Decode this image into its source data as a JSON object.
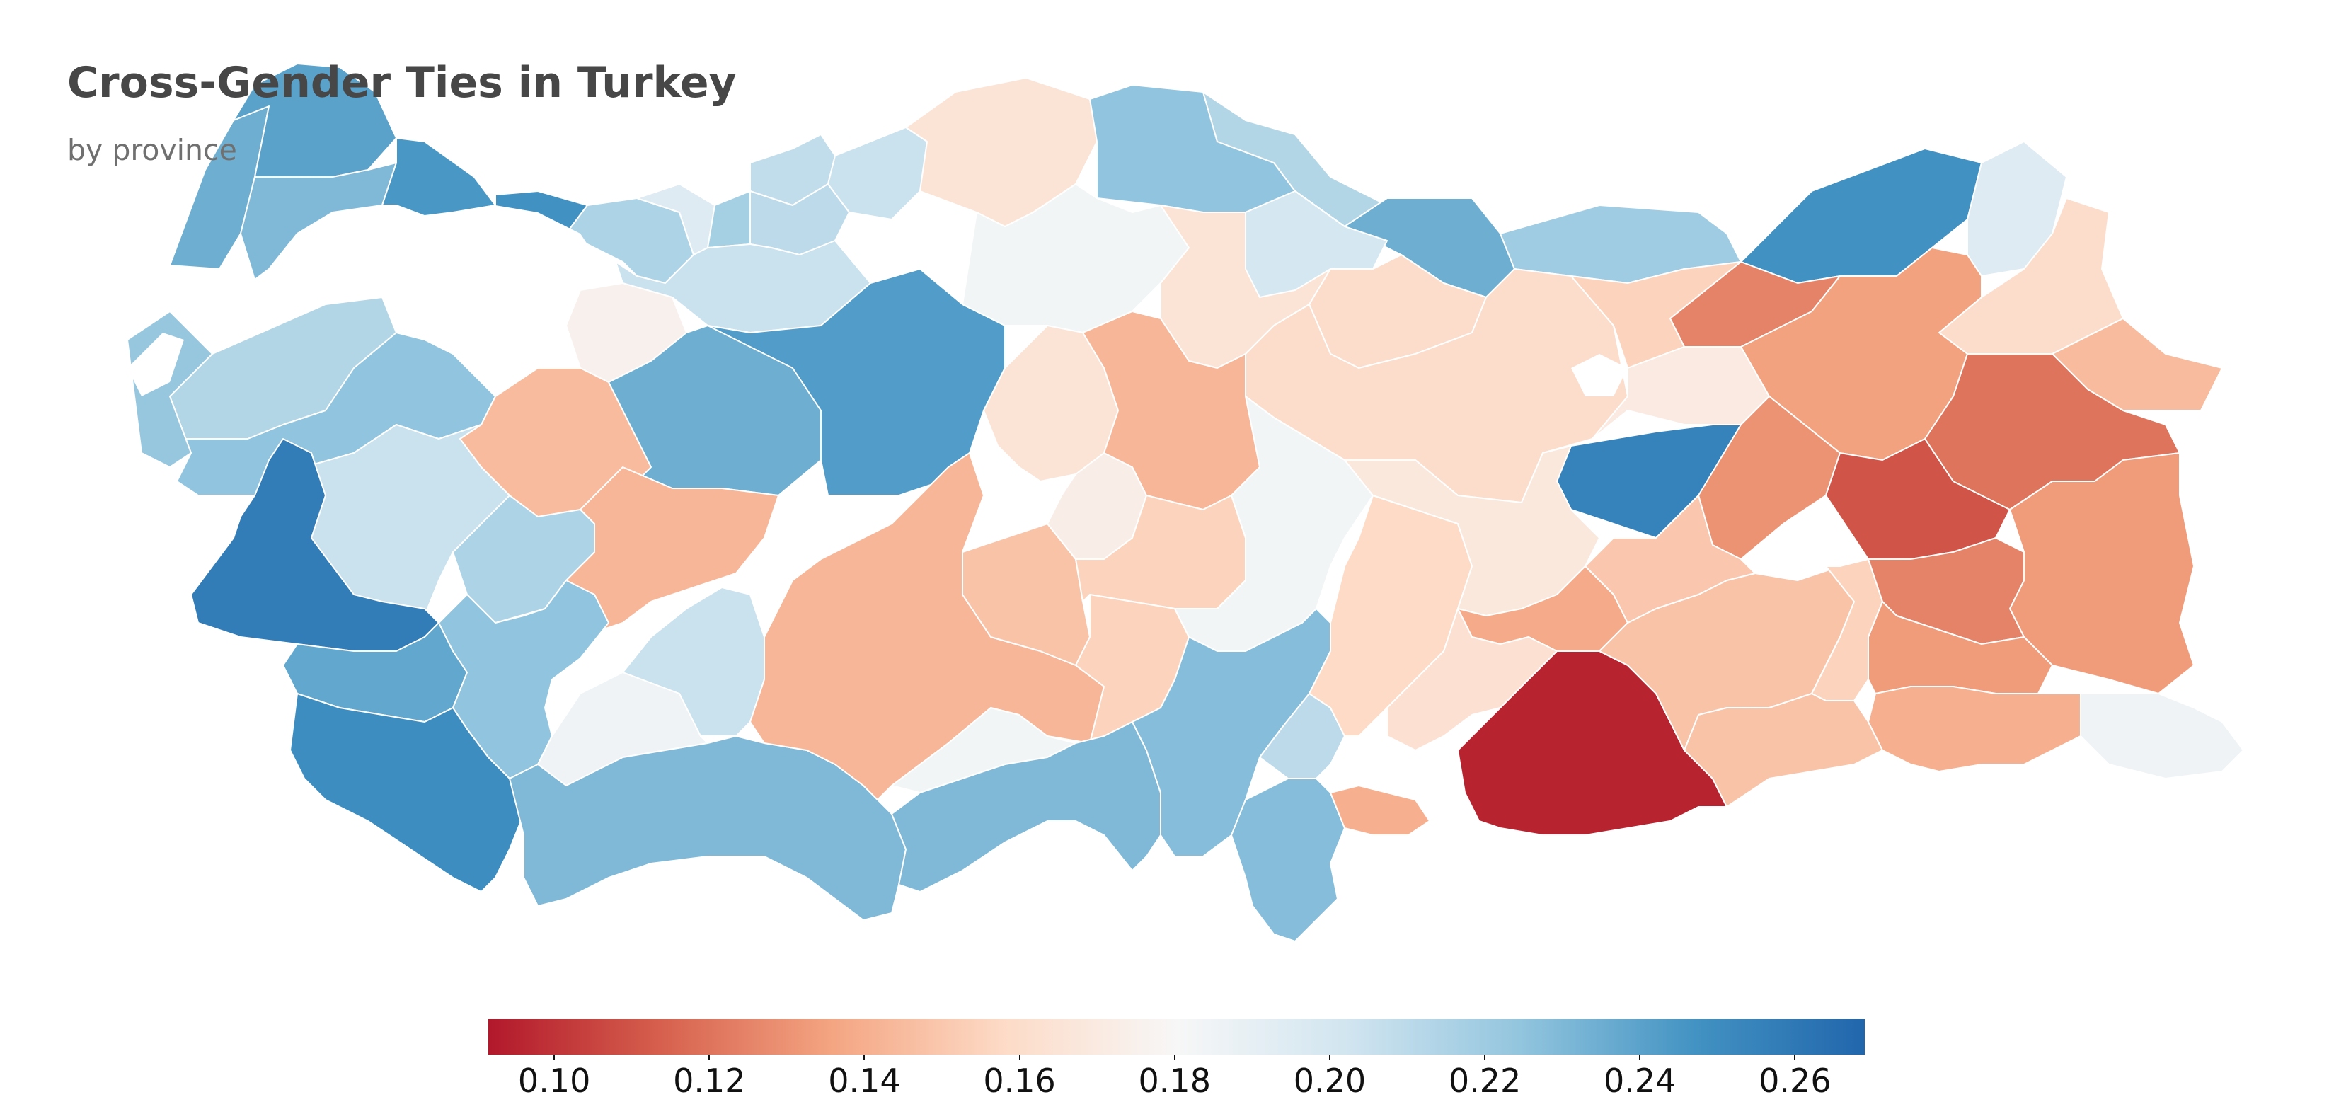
{
  "title": "Cross-Gender Ties in Turkey",
  "subtitle": "by province",
  "colorbar": {
    "min": 0.0915,
    "max": 0.269,
    "ticks": [
      "0.10",
      "0.12",
      "0.14",
      "0.16",
      "0.18",
      "0.20",
      "0.22",
      "0.24",
      "0.26"
    ],
    "colors": [
      "#b2182b",
      "#d6604d",
      "#f4a582",
      "#fddbc7",
      "#f7f7f7",
      "#d1e5f0",
      "#92c5de",
      "#4393c3",
      "#2166ac"
    ]
  },
  "chart_data": {
    "type": "choropleth",
    "title": "Cross-Gender Ties in Turkey",
    "subtitle": "by province",
    "color_scale": "diverging red-white-blue",
    "value_range": [
      0.0915,
      0.269
    ],
    "regions": [
      {
        "id": "thrace-west",
        "value": 0.235
      },
      {
        "id": "thrace-north",
        "value": 0.24
      },
      {
        "id": "thrace-east",
        "value": 0.23
      },
      {
        "id": "istanbul",
        "value": 0.245
      },
      {
        "id": "kocaeli",
        "value": 0.248
      },
      {
        "id": "sakarya",
        "value": 0.215
      },
      {
        "id": "duzce",
        "value": 0.195
      },
      {
        "id": "zonguldak",
        "value": 0.218
      },
      {
        "id": "bartin",
        "value": 0.208
      },
      {
        "id": "kastamonu-west",
        "value": 0.21
      },
      {
        "id": "kastamonu",
        "value": 0.205
      },
      {
        "id": "sinop",
        "value": 0.165
      },
      {
        "id": "samsun",
        "value": 0.225
      },
      {
        "id": "ordu-giresun",
        "value": 0.213
      },
      {
        "id": "trabzon",
        "value": 0.235
      },
      {
        "id": "rize",
        "value": 0.22
      },
      {
        "id": "artvin",
        "value": 0.248
      },
      {
        "id": "ardahan",
        "value": 0.195
      },
      {
        "id": "kars",
        "value": 0.16
      },
      {
        "id": "igdir",
        "value": 0.145
      },
      {
        "id": "bursa",
        "value": 0.213
      },
      {
        "id": "bilecik",
        "value": 0.175
      },
      {
        "id": "bolu",
        "value": 0.205
      },
      {
        "id": "eskisehir",
        "value": 0.235
      },
      {
        "id": "ankara",
        "value": 0.243
      },
      {
        "id": "cankiri",
        "value": 0.183
      },
      {
        "id": "corum",
        "value": 0.165
      },
      {
        "id": "amasya",
        "value": 0.2
      },
      {
        "id": "tokat",
        "value": 0.16
      },
      {
        "id": "sivas",
        "value": 0.16
      },
      {
        "id": "gumushane",
        "value": 0.155
      },
      {
        "id": "bayburt",
        "value": 0.125
      },
      {
        "id": "erzurum",
        "value": 0.135
      },
      {
        "id": "erzincan",
        "value": 0.17
      },
      {
        "id": "tunceli",
        "value": 0.255
      },
      {
        "id": "bingol",
        "value": 0.13
      },
      {
        "id": "mus",
        "value": 0.11
      },
      {
        "id": "agri",
        "value": 0.12
      },
      {
        "id": "van",
        "value": 0.133
      },
      {
        "id": "hakkari",
        "value": 0.185
      },
      {
        "id": "balikesir",
        "value": 0.225
      },
      {
        "id": "canakkale",
        "value": 0.223
      },
      {
        "id": "kutahya",
        "value": 0.145
      },
      {
        "id": "afyon",
        "value": 0.143
      },
      {
        "id": "usak",
        "value": 0.215
      },
      {
        "id": "manisa",
        "value": 0.205
      },
      {
        "id": "izmir",
        "value": 0.258
      },
      {
        "id": "aydin",
        "value": 0.238
      },
      {
        "id": "denizli",
        "value": 0.225
      },
      {
        "id": "mugla",
        "value": 0.25
      },
      {
        "id": "burdur",
        "value": 0.185
      },
      {
        "id": "isparta",
        "value": 0.205
      },
      {
        "id": "antalya",
        "value": 0.23
      },
      {
        "id": "konya",
        "value": 0.143
      },
      {
        "id": "aksaray",
        "value": 0.148
      },
      {
        "id": "kirsehir",
        "value": 0.173
      },
      {
        "id": "kirikkale",
        "value": 0.165
      },
      {
        "id": "yozgat",
        "value": 0.143
      },
      {
        "id": "nevsehir",
        "value": 0.155
      },
      {
        "id": "nigde",
        "value": 0.155
      },
      {
        "id": "kayseri",
        "value": 0.183
      },
      {
        "id": "karaman",
        "value": 0.183
      },
      {
        "id": "mersin",
        "value": 0.23
      },
      {
        "id": "adana",
        "value": 0.228
      },
      {
        "id": "osmaniye",
        "value": 0.21
      },
      {
        "id": "hatay",
        "value": 0.228
      },
      {
        "id": "kahramanmaras",
        "value": 0.158
      },
      {
        "id": "malatya",
        "value": 0.168
      },
      {
        "id": "adiyaman",
        "value": 0.138
      },
      {
        "id": "gaziantep",
        "value": 0.163
      },
      {
        "id": "kilis",
        "value": 0.14
      },
      {
        "id": "sanliurfa",
        "value": 0.095
      },
      {
        "id": "diyarbakir",
        "value": 0.148
      },
      {
        "id": "elazig",
        "value": 0.15
      },
      {
        "id": "batman",
        "value": 0.155
      },
      {
        "id": "bitlis",
        "value": 0.125
      },
      {
        "id": "siirt",
        "value": 0.133
      },
      {
        "id": "mardin",
        "value": 0.148
      },
      {
        "id": "sirnak",
        "value": 0.14
      }
    ]
  }
}
